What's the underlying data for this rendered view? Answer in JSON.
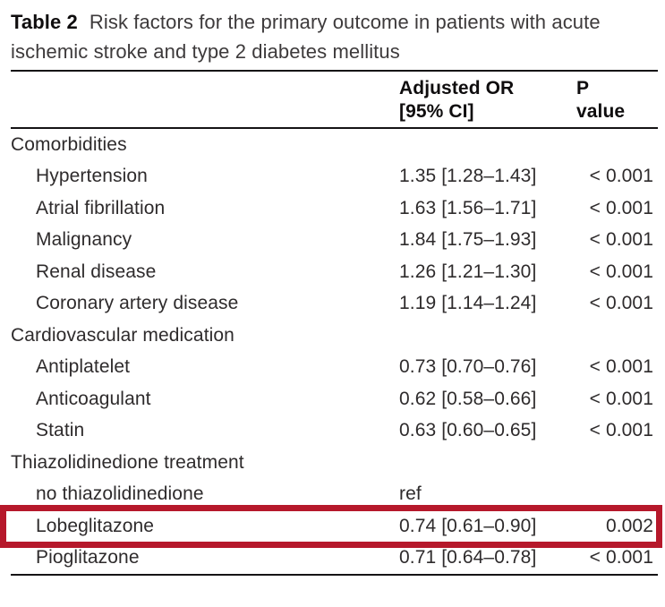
{
  "caption": {
    "label": "Table 2",
    "text": "Risk factors for the primary outcome in patients with acute ischemic stroke and type 2 diabetes mellitus"
  },
  "table": {
    "columns": {
      "adjusted_or": {
        "line1": "Adjusted OR",
        "line2": "[95% CI]"
      },
      "p_value": {
        "line1": "P",
        "line2": "value"
      }
    },
    "rows": [
      {
        "type": "section",
        "label": "Comorbidities",
        "or": "",
        "p": ""
      },
      {
        "type": "item",
        "label": "Hypertension",
        "or": "1.35 [1.28–1.43]",
        "p": "< 0.001"
      },
      {
        "type": "item",
        "label": "Atrial fibrillation",
        "or": "1.63 [1.56–1.71]",
        "p": "< 0.001"
      },
      {
        "type": "item",
        "label": "Malignancy",
        "or": "1.84 [1.75–1.93]",
        "p": "< 0.001"
      },
      {
        "type": "item",
        "label": "Renal disease",
        "or": "1.26 [1.21–1.30]",
        "p": "< 0.001"
      },
      {
        "type": "item",
        "label": "Coronary artery disease",
        "or": "1.19 [1.14–1.24]",
        "p": "< 0.001"
      },
      {
        "type": "section",
        "label": "Cardiovascular medication",
        "or": "",
        "p": ""
      },
      {
        "type": "item",
        "label": "Antiplatelet",
        "or": "0.73 [0.70–0.76]",
        "p": "< 0.001"
      },
      {
        "type": "item",
        "label": "Anticoagulant",
        "or": "0.62 [0.58–0.66]",
        "p": "< 0.001"
      },
      {
        "type": "item",
        "label": "Statin",
        "or": "0.63 [0.60–0.65]",
        "p": "< 0.001"
      },
      {
        "type": "section",
        "label": "Thiazolidinedione treatment",
        "or": "",
        "p": ""
      },
      {
        "type": "item",
        "label": "no thiazolidinedione",
        "or": "ref",
        "p": ""
      },
      {
        "type": "item",
        "label": "Lobeglitazone",
        "or": "0.74 [0.61–0.90]",
        "p": "0.002",
        "highlighted": true
      },
      {
        "type": "item",
        "label": "Pioglitazone",
        "or": "0.71 [0.64–0.78]",
        "p": "< 0.001"
      }
    ]
  },
  "highlight": {
    "highlighted_row": "Lobeglitazone",
    "box_color": "#b6182b"
  }
}
